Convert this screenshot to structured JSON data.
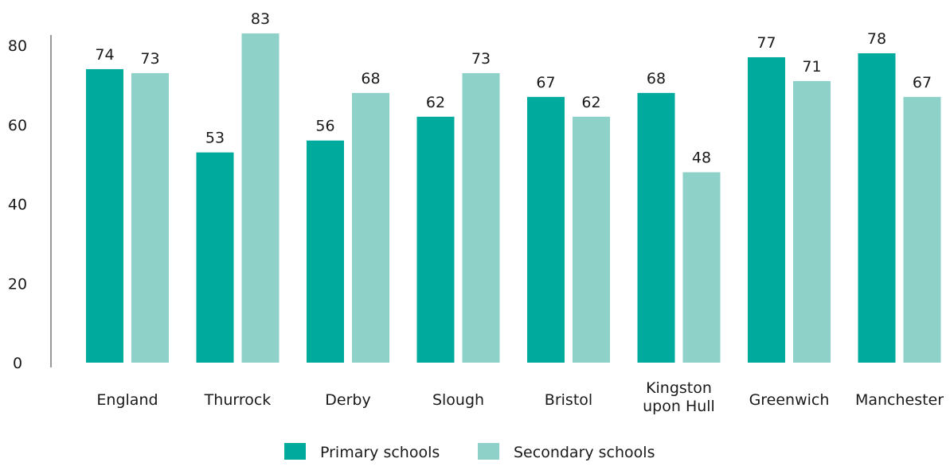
{
  "chart_data": {
    "type": "bar",
    "title": "",
    "xlabel": "",
    "ylabel": "",
    "ylim": [
      0,
      80
    ],
    "yticks": [
      0,
      20,
      40,
      60,
      80
    ],
    "categories": [
      [
        "England"
      ],
      [
        "Thurrock"
      ],
      [
        "Derby"
      ],
      [
        "Slough"
      ],
      [
        "Bristol"
      ],
      [
        "Kingston",
        "upon Hull"
      ],
      [
        "Greenwich"
      ],
      [
        "Manchester"
      ]
    ],
    "series": [
      {
        "name": "Primary schools",
        "color": "#00ab9d",
        "values": [
          74,
          53,
          56,
          62,
          67,
          68,
          77,
          78
        ]
      },
      {
        "name": "Secondary schools",
        "color": "#8dd1c8",
        "values": [
          73,
          83,
          68,
          73,
          62,
          48,
          71,
          67
        ]
      }
    ],
    "grid": false,
    "legend_position": "bottom-center",
    "data_labels": true
  }
}
